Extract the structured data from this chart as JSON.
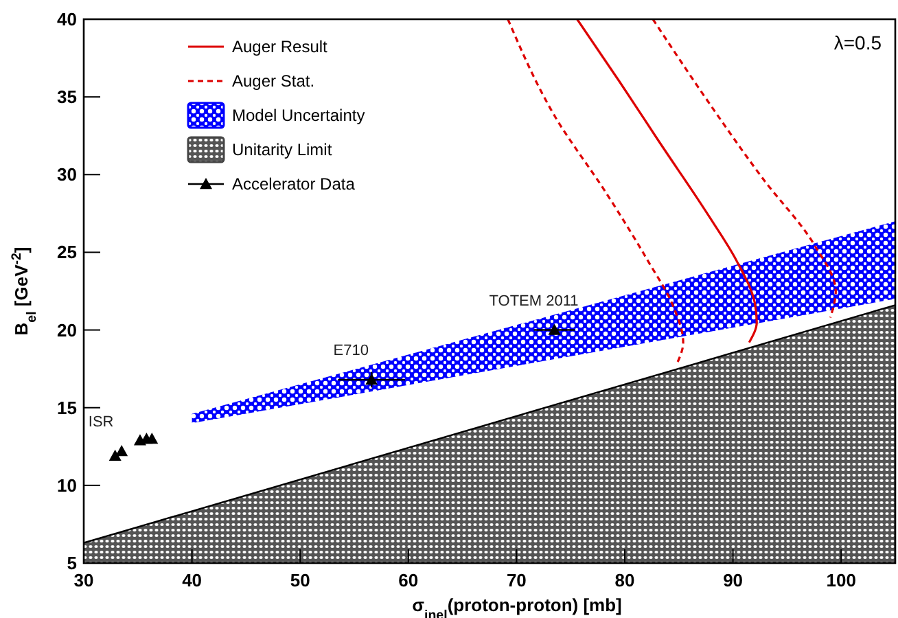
{
  "chart_data": {
    "type": "line",
    "xlabel": "σ$_{inel}$(proton-proton)  [mb]",
    "ylabel": "B$_{el}$  [GeV$^{-2}$]",
    "xlim": [
      30,
      105
    ],
    "xticks": [
      30,
      40,
      50,
      60,
      70,
      80,
      90,
      100
    ],
    "ylim": [
      5,
      40
    ],
    "yticks": [
      5,
      10,
      15,
      20,
      25,
      30,
      35,
      40
    ],
    "grid": false,
    "legend": "top left",
    "series": [
      {
        "name": "Auger Result",
        "color": "#dd0000",
        "line_style": "solid",
        "x": [
          75.6,
          79.5,
          83.1,
          87.9,
          90.3,
          92.0,
          92.2,
          91.5
        ],
        "values": [
          40,
          36,
          32.2,
          27.2,
          24.5,
          21.8,
          20.5,
          19.2
        ]
      },
      {
        "name": "Auger Stat.",
        "type": "line",
        "color": "#dd0000",
        "line_style": "dashed",
        "x": [
          69.2,
          73.5,
          78.3,
          82.1,
          84.5,
          85.4,
          84.8
        ],
        "values": [
          40,
          33.8,
          28.8,
          24.5,
          21.5,
          19.2,
          17.8
        ]
      },
      {
        "type": "line",
        "color": "#dd0000",
        "line_style": "dashed",
        "x": [
          82.6,
          87.9,
          92.7,
          97.5,
          99.5,
          99.0
        ],
        "values": [
          40,
          34.5,
          29.8,
          25.5,
          22.5,
          20.8
        ]
      },
      {
        "name": "Model Uncertainty",
        "type": "area",
        "color": "#0000ff",
        "x": [
          40,
          105
        ],
        "values": [
          null,
          null
        ],
        "lower": [
          14.0,
          22.0
        ],
        "upper": [
          14.6,
          27.0
        ]
      },
      {
        "name": "Unitarity Limit",
        "type": "area",
        "color": "#555555",
        "x": [
          30,
          105
        ],
        "values": [
          6.3,
          21.6
        ]
      },
      {
        "name": "Accelerator Data",
        "type": "scatter",
        "color": "#000000",
        "marker": "triangle",
        "x": [
          32.9,
          33.5,
          35.2,
          35.8,
          36.3,
          56.6,
          73.5
        ],
        "values": [
          11.9,
          12.2,
          12.9,
          13.0,
          13.0,
          16.8,
          20.0
        ],
        "xerrors": [
          null,
          null,
          null,
          null,
          null,
          3.1,
          1.9
        ],
        "errors": [
          null,
          null,
          null,
          null,
          null,
          0.5,
          0.3
        ]
      }
    ],
    "annotations": [
      "λ=0.5",
      {
        "text": "ISR",
        "x": 33.5,
        "y": 12.2
      },
      {
        "text": "E710",
        "x": 56.6,
        "y": 16.8
      },
      {
        "text": "TOTEM 2011",
        "x": 73.5,
        "y": 20.0
      }
    ]
  }
}
